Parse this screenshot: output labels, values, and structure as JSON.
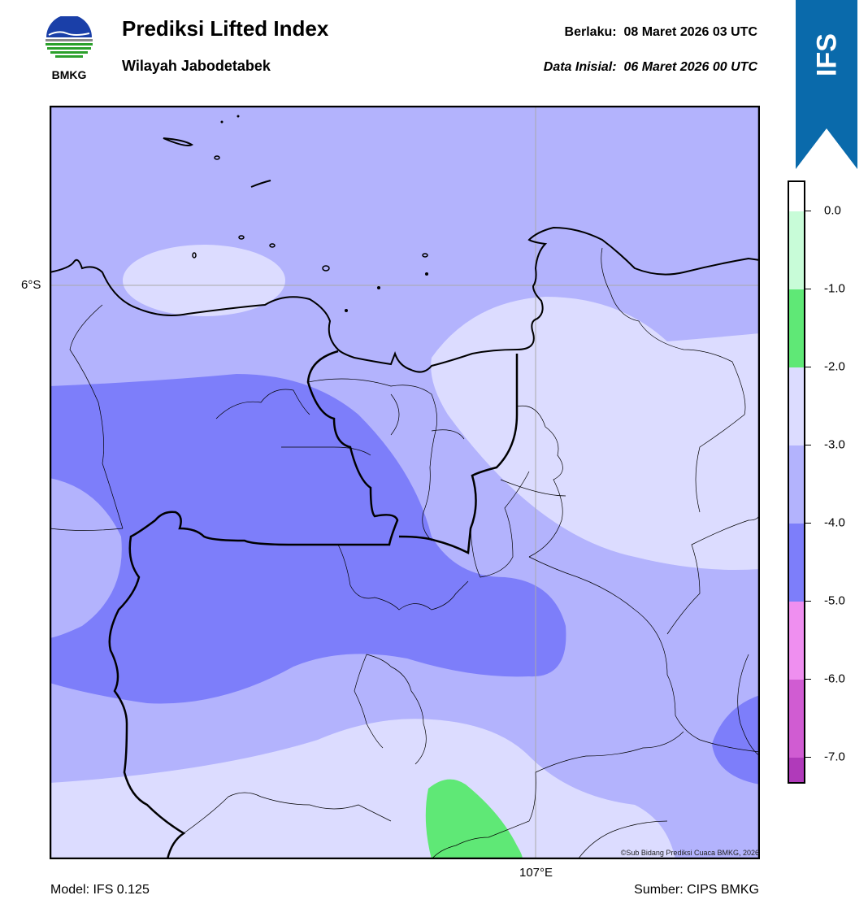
{
  "header": {
    "title": "Prediksi Lifted Index",
    "subtitle": "Wilayah Jabodetabek",
    "valid_label": "Berlaku:  08 Maret 2026 03 UTC",
    "init_label": "Data Inisial:  06 Maret 2026 00 UTC"
  },
  "logo": {
    "text": "BMKG",
    "icon": "bmkg-logo-icon"
  },
  "ribbon": {
    "text": "IFS",
    "color": "#0a6aab"
  },
  "map": {
    "lat_label": "6°S",
    "lon_label": "107°E",
    "credit": "©Sub Bidang Prediksi Cuaca BMKG, 2026"
  },
  "footer": {
    "model": "Model: IFS 0.125",
    "source": "Sumber: CIPS BMKG"
  },
  "colorbar": {
    "labels": [
      "0.0",
      "-1.0",
      "-2.0",
      "-3.0",
      "-4.0",
      "-5.0",
      "-6.0",
      "-7.0"
    ],
    "colors": [
      "#ffffff",
      "#c8fcd8",
      "#5fe876",
      "#dcdcff",
      "#b3b3fd",
      "#7d7efa",
      "#ef8ff0",
      "#d05cd2",
      "#b03aba",
      "#8c1f8e"
    ]
  }
}
